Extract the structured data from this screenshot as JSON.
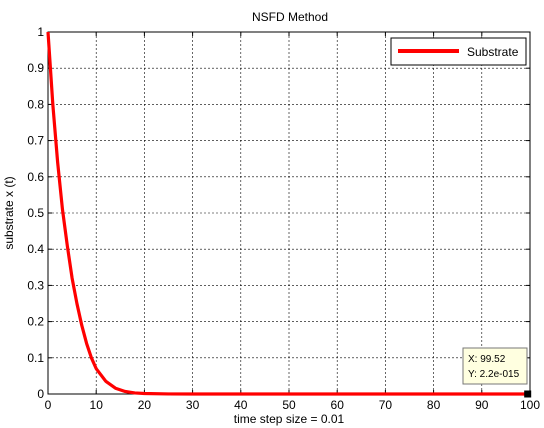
{
  "chart_data": {
    "type": "line",
    "title": "NSFD Method",
    "xlabel": "time step size = 0.01",
    "ylabel": "substrate x (t)",
    "xlim": [
      0,
      100
    ],
    "ylim": [
      0,
      1
    ],
    "grid": true,
    "legend_position": "top-right",
    "x_ticks": [
      "0",
      "10",
      "20",
      "30",
      "40",
      "50",
      "60",
      "70",
      "80",
      "90",
      "100"
    ],
    "y_ticks": [
      "0",
      "0.1",
      "0.2",
      "0.3",
      "0.4",
      "0.5",
      "0.6",
      "0.7",
      "0.8",
      "0.9",
      "1"
    ],
    "series": [
      {
        "name": "Substrate",
        "color": "#ff0000",
        "x": [
          0,
          1,
          2,
          3,
          4,
          5,
          6,
          7,
          8,
          9,
          10,
          12,
          14,
          16,
          18,
          20,
          25,
          30,
          40,
          50,
          60,
          70,
          80,
          90,
          99.52
        ],
        "y": [
          1,
          0.8,
          0.64,
          0.51,
          0.41,
          0.32,
          0.25,
          0.19,
          0.14,
          0.1,
          0.07,
          0.035,
          0.016,
          0.007,
          0.003,
          0.0013,
          0.0002,
          3e-05,
          0,
          0,
          0,
          0,
          0,
          0,
          0
        ]
      }
    ],
    "datatip": {
      "x_text": "X: 99.52",
      "y_text": "Y: 2.2e-015",
      "x": 99.52,
      "y": 0
    }
  }
}
